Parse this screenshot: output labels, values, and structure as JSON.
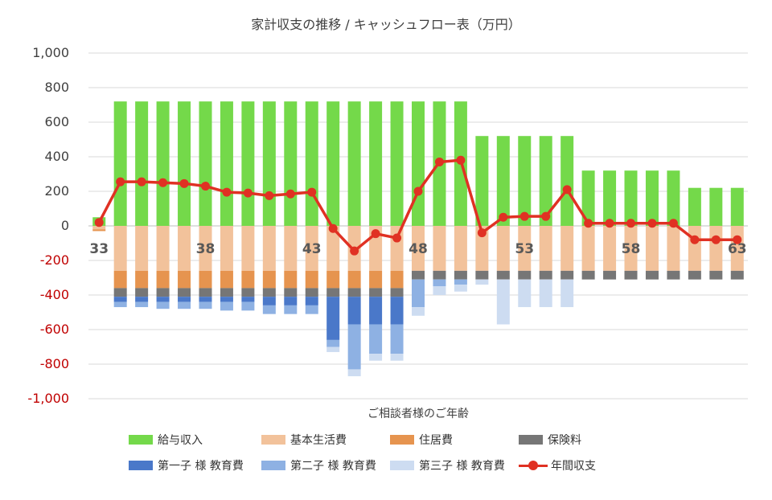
{
  "chart_data": {
    "type": "bar",
    "title": "家計収支の推移 / キャッシュフロー表（万円）",
    "xlabel": "ご相談者様のご年齢",
    "ylabel": "",
    "ylim": [
      -1000,
      1000
    ],
    "yticks": [
      "1,000",
      "800",
      "600",
      "400",
      "200",
      "0",
      "-200",
      "-400",
      "-600",
      "-800",
      "-1,000"
    ],
    "ytick_values": [
      1000,
      800,
      600,
      400,
      200,
      0,
      -200,
      -400,
      -600,
      -800,
      -1000
    ],
    "negative_tick_color": "#c00000",
    "x": [
      33,
      34,
      35,
      36,
      37,
      38,
      39,
      40,
      41,
      42,
      43,
      44,
      45,
      46,
      47,
      48,
      49,
      50,
      51,
      52,
      53,
      54,
      55,
      56,
      57,
      58,
      59,
      60,
      61,
      62,
      63
    ],
    "x_labels": [
      {
        "age": 33,
        "label": "33"
      },
      {
        "age": 38,
        "label": "38"
      },
      {
        "age": 43,
        "label": "43"
      },
      {
        "age": 48,
        "label": "48"
      },
      {
        "age": 53,
        "label": "53"
      },
      {
        "age": 58,
        "label": "58"
      },
      {
        "age": 63,
        "label": "63"
      }
    ],
    "series": [
      {
        "name": "給与収入",
        "color": "#74d94a",
        "values": [
          50,
          720,
          720,
          720,
          720,
          720,
          720,
          720,
          720,
          720,
          720,
          720,
          720,
          720,
          720,
          720,
          720,
          720,
          520,
          520,
          520,
          520,
          520,
          320,
          320,
          320,
          320,
          320,
          220,
          220,
          220
        ]
      },
      {
        "name": "基本生活費",
        "color": "#f2c29b",
        "values": [
          -20,
          -260,
          -260,
          -260,
          -260,
          -260,
          -260,
          -260,
          -260,
          -260,
          -260,
          -260,
          -260,
          -260,
          -260,
          -260,
          -260,
          -260,
          -260,
          -260,
          -260,
          -260,
          -260,
          -260,
          -260,
          -260,
          -260,
          -260,
          -260,
          -260,
          -260
        ]
      },
      {
        "name": "住居費",
        "color": "#e6944f",
        "values": [
          -10,
          -100,
          -100,
          -100,
          -100,
          -100,
          -100,
          -100,
          -100,
          -100,
          -100,
          -100,
          -100,
          -100,
          -100,
          0,
          0,
          0,
          0,
          0,
          0,
          0,
          0,
          0,
          0,
          0,
          0,
          0,
          0,
          0,
          0
        ]
      },
      {
        "name": "保険料",
        "color": "#767676",
        "values": [
          0,
          -50,
          -50,
          -50,
          -50,
          -50,
          -50,
          -50,
          -50,
          -50,
          -50,
          -50,
          -50,
          -50,
          -50,
          -50,
          -50,
          -50,
          -50,
          -50,
          -50,
          -50,
          -50,
          -50,
          -50,
          -50,
          -50,
          -50,
          -50,
          -50,
          -50
        ]
      },
      {
        "name": "第一子 様 教育費",
        "color": "#4a78c9",
        "values": [
          0,
          -30,
          -30,
          -30,
          -30,
          -30,
          -30,
          -30,
          -50,
          -50,
          -50,
          -250,
          -160,
          -160,
          -160,
          0,
          0,
          0,
          0,
          0,
          0,
          0,
          0,
          0,
          0,
          0,
          0,
          0,
          0,
          0,
          0
        ]
      },
      {
        "name": "第二子 様 教育費",
        "color": "#8eb1e3",
        "values": [
          0,
          -30,
          -30,
          -40,
          -40,
          -40,
          -50,
          -50,
          -50,
          -50,
          -50,
          -40,
          -260,
          -170,
          -170,
          -160,
          -40,
          -30,
          0,
          0,
          0,
          0,
          0,
          0,
          0,
          0,
          0,
          0,
          0,
          0,
          0
        ]
      },
      {
        "name": "第三子 様 教育費",
        "color": "#cddcf1",
        "values": [
          0,
          0,
          0,
          0,
          0,
          0,
          0,
          0,
          0,
          0,
          0,
          -30,
          -40,
          -40,
          -40,
          -50,
          -50,
          -40,
          -30,
          -260,
          -160,
          -160,
          -160,
          0,
          0,
          0,
          0,
          0,
          0,
          0,
          0
        ]
      },
      {
        "name": "年間収支",
        "type": "line",
        "color": "#e03123",
        "values": [
          20,
          255,
          255,
          250,
          245,
          230,
          195,
          190,
          175,
          185,
          195,
          -15,
          -145,
          -45,
          -70,
          200,
          370,
          380,
          -40,
          50,
          55,
          55,
          210,
          15,
          15,
          15,
          15,
          15,
          -80,
          -80,
          -80
        ]
      }
    ],
    "legend": [
      {
        "name": "給与収入",
        "kind": "bar",
        "color": "#74d94a"
      },
      {
        "name": "基本生活費",
        "kind": "bar",
        "color": "#f2c29b"
      },
      {
        "name": "住居費",
        "kind": "bar",
        "color": "#e6944f"
      },
      {
        "name": "保険料",
        "kind": "bar",
        "color": "#767676"
      },
      {
        "name": "第一子 様 教育費",
        "kind": "bar",
        "color": "#4a78c9"
      },
      {
        "name": "第二子 様 教育費",
        "kind": "bar",
        "color": "#8eb1e3"
      },
      {
        "name": "第三子 様 教育費",
        "kind": "bar",
        "color": "#cddcf1"
      },
      {
        "name": "年間収支",
        "kind": "line",
        "color": "#e03123"
      }
    ]
  }
}
